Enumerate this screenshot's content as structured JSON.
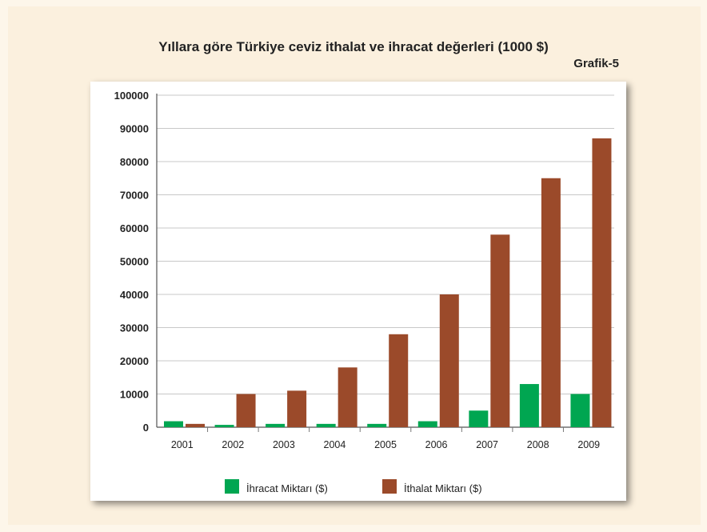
{
  "figure": {
    "title": "Yıllara göre Türkiye ceviz ithalat ve ihracat değerleri (1000 $)",
    "label": "Grafik-5"
  },
  "chart_data": {
    "type": "bar",
    "title": "Yıllara göre Türkiye ceviz ithalat ve ihracat değerleri (1000 $)",
    "xlabel": "",
    "ylabel": "",
    "categories": [
      "2001",
      "2002",
      "2003",
      "2004",
      "2005",
      "2006",
      "2007",
      "2008",
      "2009"
    ],
    "ylim": [
      0,
      100000
    ],
    "yticks": [
      0,
      10000,
      20000,
      30000,
      40000,
      50000,
      60000,
      70000,
      80000,
      90000,
      100000
    ],
    "grid": true,
    "legend_position": "bottom",
    "series": [
      {
        "name": "İhracat Miktarı ($)",
        "color": "#00a651",
        "values": [
          1800,
          700,
          1000,
          1000,
          1000,
          1800,
          5000,
          13000,
          10000
        ]
      },
      {
        "name": "İthalat Miktarı ($)",
        "color": "#9b4a2a",
        "values": [
          1000,
          10000,
          11000,
          18000,
          28000,
          40000,
          58000,
          75000,
          87000
        ]
      }
    ]
  }
}
